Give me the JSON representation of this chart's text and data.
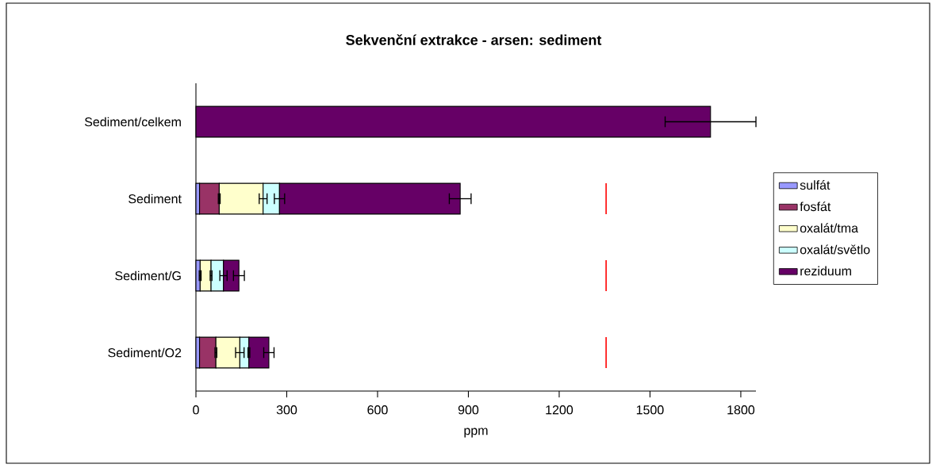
{
  "chart_data": {
    "type": "bar",
    "orientation": "horizontal",
    "stacked": true,
    "title": "Sekvenční extrakce - arsen: sediment",
    "xlabel": "ppm",
    "categories": [
      "Sediment/celkem",
      "Sediment",
      "Sediment/G",
      "Sediment/O2"
    ],
    "series": [
      {
        "name": "sulfát",
        "color": "#9999ff",
        "values": [
          null,
          12,
          14,
          12
        ],
        "errors": [
          null,
          null,
          3,
          null
        ]
      },
      {
        "name": "fosfát",
        "color": "#993366",
        "values": [
          null,
          65,
          null,
          54
        ],
        "errors": [
          null,
          3,
          null,
          3
        ]
      },
      {
        "name": "oxalát/tma",
        "color": "#ffffcc",
        "values": [
          null,
          145,
          36,
          79
        ],
        "errors": [
          null,
          13,
          3,
          14
        ]
      },
      {
        "name": "oxalát/světlo",
        "color": "#ccffff",
        "values": [
          null,
          54,
          41,
          30
        ],
        "errors": [
          null,
          17,
          12,
          3
        ]
      },
      {
        "name": "reziduum",
        "color": "#660066",
        "values": [
          1700,
          597,
          51,
          66
        ],
        "errors": [
          150,
          36,
          18,
          17
        ]
      }
    ],
    "xlim": [
      0,
      1850
    ],
    "xticks": [
      0,
      300,
      600,
      900,
      1200,
      1500,
      1800
    ],
    "ref_lines": [
      {
        "axis": "x",
        "value": 1355,
        "color": "#ff0000",
        "line_style": "dashed"
      }
    ],
    "legend": "right"
  }
}
